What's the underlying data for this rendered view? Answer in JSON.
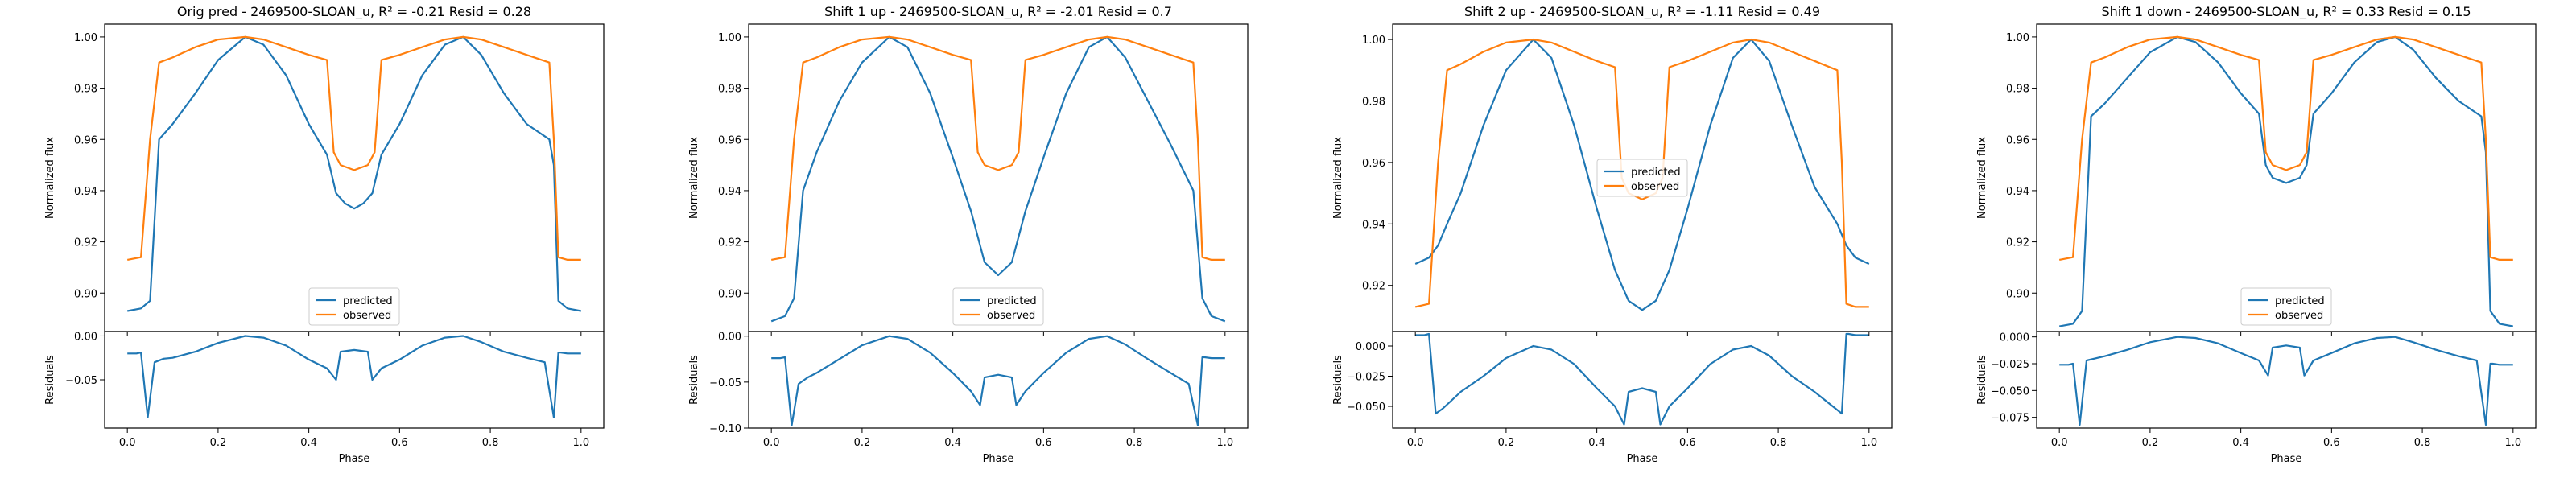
{
  "colors": {
    "predicted": "#1f77b4",
    "observed": "#ff7f0e"
  },
  "chart_data": [
    {
      "type": "line",
      "title": "Orig pred - 2469500-SLOAN_u, R² = -0.21 Resid = 0.28",
      "xlabel": "Phase",
      "ylabel_top": "Normalized flux",
      "ylabel_bottom": "Residuals",
      "xlim": [
        -0.05,
        1.05
      ],
      "top_ylim": [
        0.885,
        1.005
      ],
      "top_yticks": [
        "0.90",
        "0.92",
        "0.94",
        "0.96",
        "0.98",
        "1.00"
      ],
      "bottom_ylim": [
        -0.105,
        0.005
      ],
      "bottom_yticks": [
        "−0.05",
        "0.00"
      ],
      "xticks": [
        "0.0",
        "0.2",
        "0.4",
        "0.6",
        "0.8",
        "1.0"
      ],
      "legend": {
        "placement": "lower-center",
        "entries": [
          "predicted",
          "observed"
        ]
      },
      "series": [
        {
          "name": "predicted",
          "x": [
            0.0,
            0.03,
            0.05,
            0.07,
            0.1,
            0.15,
            0.2,
            0.26,
            0.3,
            0.35,
            0.4,
            0.44,
            0.46,
            0.48,
            0.5,
            0.52,
            0.54,
            0.56,
            0.6,
            0.65,
            0.7,
            0.74,
            0.78,
            0.83,
            0.88,
            0.93,
            0.94,
            0.95,
            0.97,
            1.0
          ],
          "y": [
            0.893,
            0.894,
            0.897,
            0.96,
            0.966,
            0.978,
            0.991,
            1.0,
            0.997,
            0.985,
            0.966,
            0.954,
            0.939,
            0.935,
            0.933,
            0.935,
            0.939,
            0.954,
            0.966,
            0.985,
            0.997,
            1.0,
            0.993,
            0.978,
            0.966,
            0.96,
            0.95,
            0.897,
            0.894,
            0.893
          ]
        },
        {
          "name": "observed",
          "x": [
            0.0,
            0.03,
            0.05,
            0.07,
            0.1,
            0.15,
            0.2,
            0.26,
            0.3,
            0.35,
            0.4,
            0.44,
            0.455,
            0.47,
            0.5,
            0.53,
            0.545,
            0.56,
            0.6,
            0.65,
            0.7,
            0.74,
            0.78,
            0.83,
            0.88,
            0.93,
            0.94,
            0.95,
            0.97,
            1.0
          ],
          "y": [
            0.913,
            0.914,
            0.96,
            0.99,
            0.992,
            0.996,
            0.999,
            1.0,
            0.999,
            0.996,
            0.993,
            0.991,
            0.955,
            0.95,
            0.948,
            0.95,
            0.955,
            0.991,
            0.993,
            0.996,
            0.999,
            1.0,
            0.999,
            0.996,
            0.993,
            0.99,
            0.96,
            0.914,
            0.913,
            0.913
          ]
        }
      ],
      "residuals": {
        "x": [
          0.0,
          0.02,
          0.03,
          0.045,
          0.06,
          0.08,
          0.1,
          0.15,
          0.2,
          0.26,
          0.3,
          0.35,
          0.4,
          0.44,
          0.46,
          0.47,
          0.5,
          0.53,
          0.54,
          0.56,
          0.6,
          0.65,
          0.7,
          0.74,
          0.78,
          0.83,
          0.88,
          0.92,
          0.94,
          0.95,
          0.955,
          0.97,
          1.0
        ],
        "y": [
          -0.02,
          -0.02,
          -0.019,
          -0.093,
          -0.03,
          -0.026,
          -0.025,
          -0.018,
          -0.008,
          0.0,
          -0.002,
          -0.011,
          -0.027,
          -0.037,
          -0.05,
          -0.018,
          -0.016,
          -0.018,
          -0.05,
          -0.037,
          -0.027,
          -0.011,
          -0.002,
          0.0,
          -0.007,
          -0.018,
          -0.025,
          -0.03,
          -0.093,
          -0.019,
          -0.019,
          -0.02,
          -0.02
        ]
      }
    },
    {
      "type": "line",
      "title": "Shift 1 up - 2469500-SLOAN_u, R² = -2.01 Resid = 0.7",
      "xlabel": "Phase",
      "ylabel_top": "Normalized flux",
      "ylabel_bottom": "Residuals",
      "xlim": [
        -0.05,
        1.05
      ],
      "top_ylim": [
        0.885,
        1.005
      ],
      "top_yticks": [
        "0.90",
        "0.92",
        "0.94",
        "0.96",
        "0.98",
        "1.00"
      ],
      "bottom_ylim": [
        -0.1,
        0.005
      ],
      "bottom_yticks": [
        "−0.10",
        "−0.05",
        "0.00"
      ],
      "xticks": [
        "0.0",
        "0.2",
        "0.4",
        "0.6",
        "0.8",
        "1.0"
      ],
      "legend": {
        "placement": "lower-center",
        "entries": [
          "predicted",
          "observed"
        ]
      },
      "series": [
        {
          "name": "predicted",
          "x": [
            0.0,
            0.03,
            0.05,
            0.07,
            0.1,
            0.15,
            0.2,
            0.26,
            0.3,
            0.35,
            0.4,
            0.44,
            0.47,
            0.5,
            0.53,
            0.56,
            0.6,
            0.65,
            0.7,
            0.74,
            0.78,
            0.83,
            0.88,
            0.93,
            0.95,
            0.97,
            1.0
          ],
          "y": [
            0.889,
            0.891,
            0.898,
            0.94,
            0.955,
            0.975,
            0.99,
            1.0,
            0.996,
            0.978,
            0.953,
            0.932,
            0.912,
            0.907,
            0.912,
            0.932,
            0.953,
            0.978,
            0.996,
            1.0,
            0.992,
            0.975,
            0.958,
            0.94,
            0.898,
            0.891,
            0.889
          ]
        },
        {
          "name": "observed",
          "x": [
            0.0,
            0.03,
            0.05,
            0.07,
            0.1,
            0.15,
            0.2,
            0.26,
            0.3,
            0.35,
            0.4,
            0.44,
            0.455,
            0.47,
            0.5,
            0.53,
            0.545,
            0.56,
            0.6,
            0.65,
            0.7,
            0.74,
            0.78,
            0.83,
            0.88,
            0.93,
            0.94,
            0.95,
            0.97,
            1.0
          ],
          "y": [
            0.913,
            0.914,
            0.96,
            0.99,
            0.992,
            0.996,
            0.999,
            1.0,
            0.999,
            0.996,
            0.993,
            0.991,
            0.955,
            0.95,
            0.948,
            0.95,
            0.955,
            0.991,
            0.993,
            0.996,
            0.999,
            1.0,
            0.999,
            0.996,
            0.993,
            0.99,
            0.96,
            0.914,
            0.913,
            0.913
          ]
        }
      ],
      "residuals": {
        "x": [
          0.0,
          0.02,
          0.03,
          0.045,
          0.06,
          0.08,
          0.1,
          0.15,
          0.2,
          0.26,
          0.3,
          0.35,
          0.4,
          0.44,
          0.46,
          0.47,
          0.5,
          0.53,
          0.54,
          0.56,
          0.6,
          0.65,
          0.7,
          0.74,
          0.78,
          0.83,
          0.88,
          0.92,
          0.94,
          0.95,
          0.955,
          0.97,
          1.0
        ],
        "y": [
          -0.024,
          -0.024,
          -0.023,
          -0.097,
          -0.052,
          -0.045,
          -0.04,
          -0.025,
          -0.01,
          0.0,
          -0.003,
          -0.018,
          -0.04,
          -0.06,
          -0.075,
          -0.045,
          -0.042,
          -0.045,
          -0.075,
          -0.06,
          -0.04,
          -0.018,
          -0.003,
          0.0,
          -0.009,
          -0.025,
          -0.04,
          -0.052,
          -0.097,
          -0.023,
          -0.023,
          -0.024,
          -0.024
        ]
      }
    },
    {
      "type": "line",
      "title": "Shift 2 up - 2469500-SLOAN_u, R² = -1.11 Resid = 0.49",
      "xlabel": "Phase",
      "ylabel_top": "Normalized flux",
      "ylabel_bottom": "Residuals",
      "xlim": [
        -0.05,
        1.05
      ],
      "top_ylim": [
        0.905,
        1.005
      ],
      "top_yticks": [
        "0.92",
        "0.94",
        "0.96",
        "0.98",
        "1.00"
      ],
      "bottom_ylim": [
        -0.068,
        0.012
      ],
      "bottom_yticks": [
        "−0.050",
        "−0.025",
        "0.000"
      ],
      "xticks": [
        "0.0",
        "0.2",
        "0.4",
        "0.6",
        "0.8",
        "1.0"
      ],
      "legend": {
        "placement": "center",
        "entries": [
          "predicted",
          "observed"
        ]
      },
      "series": [
        {
          "name": "predicted",
          "x": [
            0.0,
            0.03,
            0.05,
            0.07,
            0.1,
            0.15,
            0.2,
            0.26,
            0.3,
            0.35,
            0.4,
            0.44,
            0.47,
            0.5,
            0.53,
            0.56,
            0.6,
            0.65,
            0.7,
            0.74,
            0.78,
            0.83,
            0.88,
            0.93,
            0.95,
            0.97,
            1.0
          ],
          "y": [
            0.927,
            0.929,
            0.933,
            0.94,
            0.95,
            0.972,
            0.99,
            1.0,
            0.994,
            0.972,
            0.945,
            0.925,
            0.915,
            0.912,
            0.915,
            0.925,
            0.945,
            0.972,
            0.994,
            1.0,
            0.993,
            0.972,
            0.952,
            0.94,
            0.933,
            0.929,
            0.927
          ]
        },
        {
          "name": "observed",
          "x": [
            0.0,
            0.03,
            0.05,
            0.07,
            0.1,
            0.15,
            0.2,
            0.26,
            0.3,
            0.35,
            0.4,
            0.44,
            0.455,
            0.47,
            0.5,
            0.53,
            0.545,
            0.56,
            0.6,
            0.65,
            0.7,
            0.74,
            0.78,
            0.83,
            0.88,
            0.93,
            0.94,
            0.95,
            0.97,
            1.0
          ],
          "y": [
            0.913,
            0.914,
            0.96,
            0.99,
            0.992,
            0.996,
            0.999,
            1.0,
            0.999,
            0.996,
            0.993,
            0.991,
            0.955,
            0.95,
            0.948,
            0.95,
            0.955,
            0.991,
            0.993,
            0.996,
            0.999,
            1.0,
            0.999,
            0.996,
            0.993,
            0.99,
            0.96,
            0.914,
            0.913,
            0.913
          ]
        }
      ],
      "residuals": {
        "x": [
          0.0,
          0.02,
          0.03,
          0.045,
          0.06,
          0.08,
          0.1,
          0.15,
          0.2,
          0.26,
          0.3,
          0.35,
          0.4,
          0.44,
          0.46,
          0.47,
          0.5,
          0.53,
          0.54,
          0.56,
          0.6,
          0.65,
          0.7,
          0.74,
          0.78,
          0.83,
          0.88,
          0.92,
          0.94,
          0.95,
          0.955,
          0.97,
          1.0
        ],
        "y": [
          0.009,
          0.009,
          0.01,
          -0.056,
          -0.052,
          -0.045,
          -0.038,
          -0.025,
          -0.01,
          0.0,
          -0.003,
          -0.015,
          -0.035,
          -0.05,
          -0.065,
          -0.038,
          -0.035,
          -0.038,
          -0.065,
          -0.05,
          -0.035,
          -0.015,
          -0.003,
          0.0,
          -0.008,
          -0.025,
          -0.038,
          -0.05,
          -0.056,
          0.01,
          0.01,
          0.009,
          0.009
        ]
      }
    },
    {
      "type": "line",
      "title": "Shift 1 down - 2469500-SLOAN_u, R² = 0.33 Resid = 0.15",
      "xlabel": "Phase",
      "ylabel_top": "Normalized flux",
      "ylabel_bottom": "Residuals",
      "xlim": [
        -0.05,
        1.05
      ],
      "top_ylim": [
        0.885,
        1.005
      ],
      "top_yticks": [
        "0.90",
        "0.92",
        "0.94",
        "0.96",
        "0.98",
        "1.00"
      ],
      "bottom_ylim": [
        -0.085,
        0.005
      ],
      "bottom_yticks": [
        "−0.075",
        "−0.050",
        "−0.025",
        "0.000"
      ],
      "xticks": [
        "0.0",
        "0.2",
        "0.4",
        "0.6",
        "0.8",
        "1.0"
      ],
      "legend": {
        "placement": "lower-center",
        "entries": [
          "predicted",
          "observed"
        ]
      },
      "series": [
        {
          "name": "predicted",
          "x": [
            0.0,
            0.03,
            0.05,
            0.07,
            0.1,
            0.15,
            0.2,
            0.26,
            0.3,
            0.35,
            0.4,
            0.44,
            0.455,
            0.47,
            0.5,
            0.53,
            0.545,
            0.56,
            0.6,
            0.65,
            0.7,
            0.74,
            0.78,
            0.83,
            0.88,
            0.93,
            0.94,
            0.95,
            0.97,
            1.0
          ],
          "y": [
            0.887,
            0.888,
            0.893,
            0.969,
            0.974,
            0.984,
            0.994,
            1.0,
            0.998,
            0.99,
            0.978,
            0.97,
            0.95,
            0.945,
            0.943,
            0.945,
            0.95,
            0.97,
            0.978,
            0.99,
            0.998,
            1.0,
            0.995,
            0.984,
            0.975,
            0.969,
            0.955,
            0.893,
            0.888,
            0.887
          ]
        },
        {
          "name": "observed",
          "x": [
            0.0,
            0.03,
            0.05,
            0.07,
            0.1,
            0.15,
            0.2,
            0.26,
            0.3,
            0.35,
            0.4,
            0.44,
            0.455,
            0.47,
            0.5,
            0.53,
            0.545,
            0.56,
            0.6,
            0.65,
            0.7,
            0.74,
            0.78,
            0.83,
            0.88,
            0.93,
            0.94,
            0.95,
            0.97,
            1.0
          ],
          "y": [
            0.913,
            0.914,
            0.96,
            0.99,
            0.992,
            0.996,
            0.999,
            1.0,
            0.999,
            0.996,
            0.993,
            0.991,
            0.955,
            0.95,
            0.948,
            0.95,
            0.955,
            0.991,
            0.993,
            0.996,
            0.999,
            1.0,
            0.999,
            0.996,
            0.993,
            0.99,
            0.96,
            0.914,
            0.913,
            0.913
          ]
        }
      ],
      "residuals": {
        "x": [
          0.0,
          0.02,
          0.03,
          0.045,
          0.06,
          0.08,
          0.1,
          0.15,
          0.2,
          0.26,
          0.3,
          0.35,
          0.4,
          0.44,
          0.46,
          0.47,
          0.5,
          0.53,
          0.54,
          0.56,
          0.6,
          0.65,
          0.7,
          0.74,
          0.78,
          0.83,
          0.88,
          0.92,
          0.94,
          0.95,
          0.955,
          0.97,
          1.0
        ],
        "y": [
          -0.026,
          -0.026,
          -0.025,
          -0.082,
          -0.022,
          -0.02,
          -0.018,
          -0.012,
          -0.005,
          0.0,
          -0.001,
          -0.006,
          -0.015,
          -0.022,
          -0.036,
          -0.01,
          -0.008,
          -0.01,
          -0.036,
          -0.022,
          -0.015,
          -0.006,
          -0.001,
          0.0,
          -0.005,
          -0.012,
          -0.018,
          -0.022,
          -0.082,
          -0.025,
          -0.025,
          -0.026,
          -0.026
        ]
      }
    }
  ]
}
